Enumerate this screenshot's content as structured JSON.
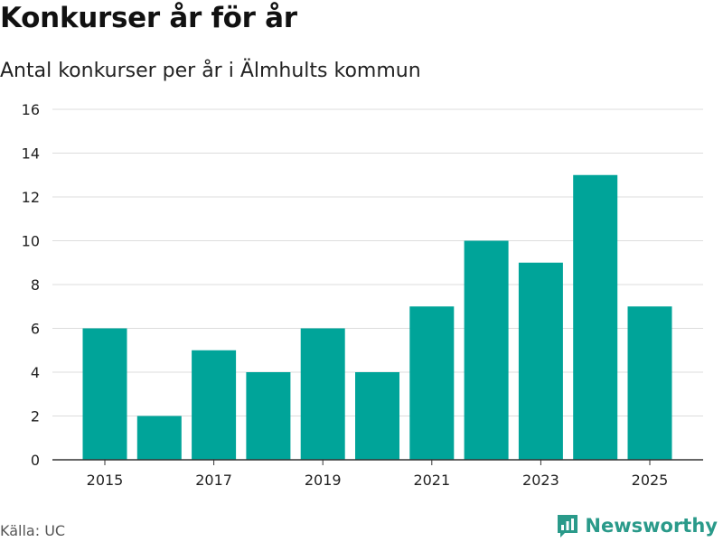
{
  "header": {
    "title": "Konkurser år för år",
    "subtitle": "Antal konkurser per år i Älmhults kommun"
  },
  "footer": {
    "source": "Källa: UC",
    "brand": "Newsworthy"
  },
  "colors": {
    "bar": "#00a499",
    "grid": "#dddddd",
    "axis": "#333333",
    "brand": "#2a9a8a"
  },
  "chart_data": {
    "type": "bar",
    "title": "Konkurser år för år",
    "subtitle": "Antal konkurser per år i Älmhults kommun",
    "xlabel": "",
    "ylabel": "",
    "categories": [
      "2015",
      "2016",
      "2017",
      "2018",
      "2019",
      "2020",
      "2021",
      "2022",
      "2023",
      "2024",
      "2025"
    ],
    "values": [
      6,
      2,
      5,
      4,
      6,
      4,
      7,
      10,
      9,
      13,
      7
    ],
    "x_tick_labels": [
      "2015",
      "2017",
      "2019",
      "2021",
      "2023",
      "2025"
    ],
    "y_ticks": [
      0,
      2,
      4,
      6,
      8,
      10,
      12,
      14,
      16
    ],
    "ylim": [
      0,
      16
    ],
    "grid": true,
    "legend": "none"
  }
}
